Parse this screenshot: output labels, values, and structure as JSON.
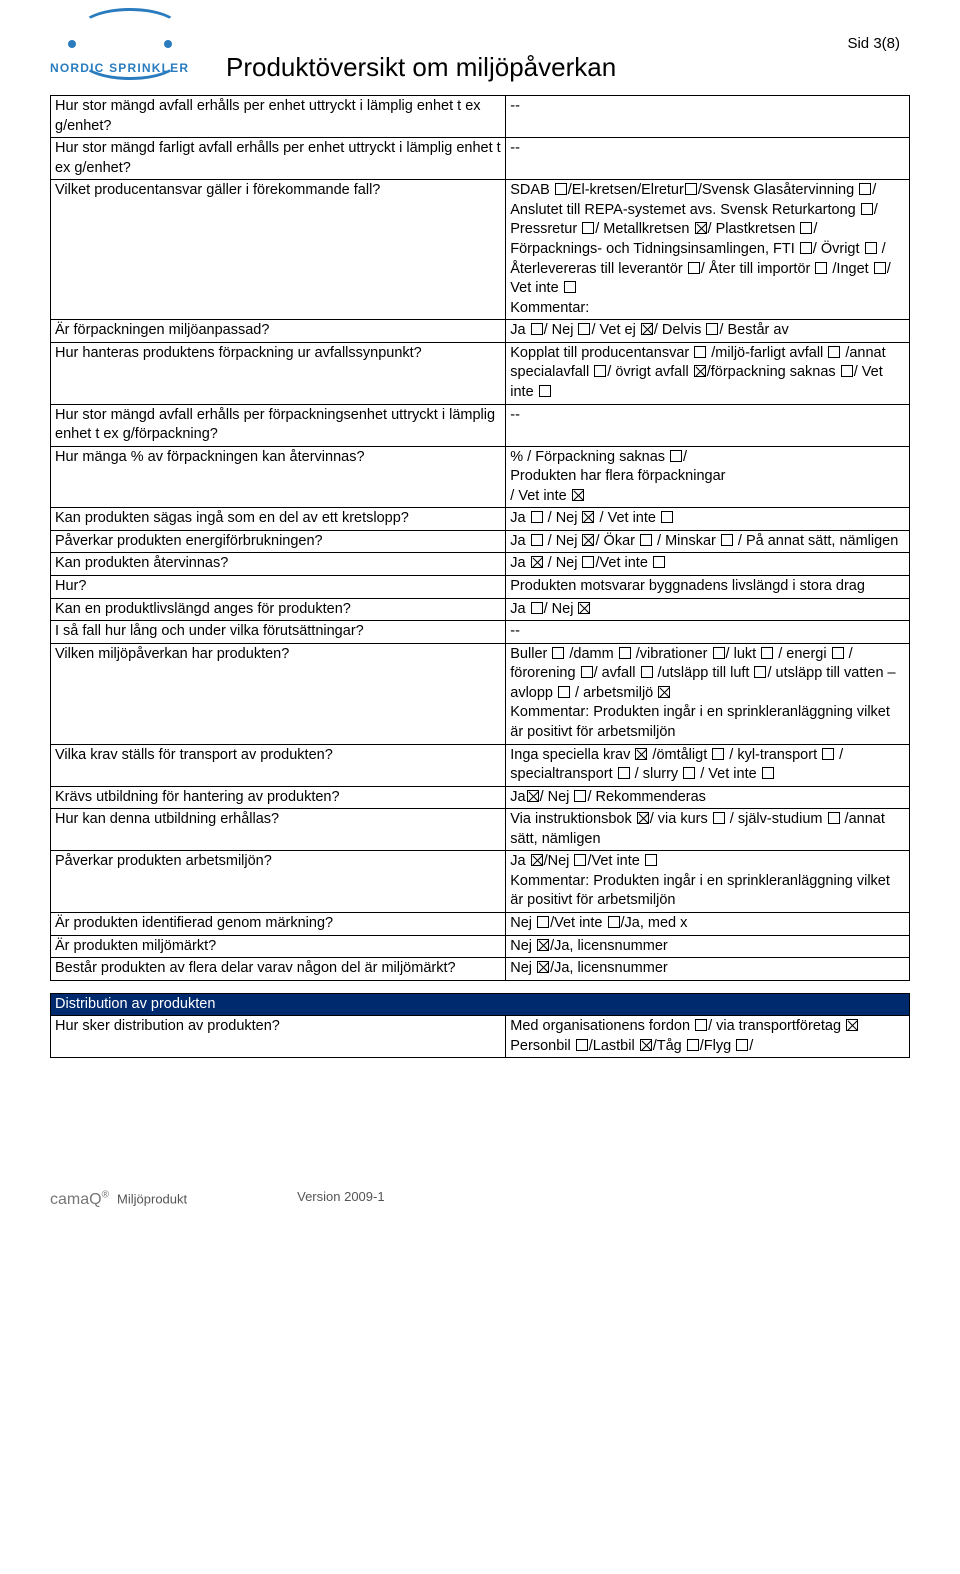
{
  "logo": {
    "text": "NORDIC SPRINKLER"
  },
  "page_number": "Sid 3(8)",
  "title": "Produktöversikt om miljöpåverkan",
  "rows": [
    {
      "q": "Hur stor mängd avfall erhålls per enhet uttryckt i lämplig enhet t ex g/enhet?",
      "a": [
        [
          "--"
        ]
      ]
    },
    {
      "q": "Hur stor mängd farligt avfall erhålls per enhet uttryckt i lämplig enhet t ex g/enhet?",
      "a": [
        [
          "--"
        ]
      ]
    },
    {
      "q": "Vilket producentansvar gäller i förekommande fall?",
      "a": [
        [
          "SDAB ",
          {
            "cb": 0
          },
          "/El-kretsen/Elretur",
          {
            "cb": 0
          },
          "/Svensk Glasåtervinning ",
          {
            "cb": 0
          },
          "/ Anslutet till REPA-systemet avs. Svensk Returkartong ",
          {
            "cb": 0
          },
          "/ Pressretur ",
          {
            "cb": 0
          },
          "/  Metallkretsen ",
          {
            "cb": 1
          },
          "/ Plastkretsen ",
          {
            "cb": 0
          },
          "/ Förpacknings- och Tidningsinsamlingen, FTI ",
          {
            "cb": 0
          },
          "/ Övrigt ",
          {
            "cb": 0
          },
          " / Återlevereras till leverantör ",
          {
            "cb": 0
          },
          "/ Åter till importör ",
          {
            "cb": 0
          },
          " /Inget ",
          {
            "cb": 0
          },
          "/"
        ],
        [
          "Vet inte ",
          {
            "cb": 0
          }
        ],
        [
          "Kommentar:"
        ]
      ]
    },
    {
      "q": "Är förpackningen miljöanpassad?",
      "a": [
        [
          "Ja ",
          {
            "cb": 0
          },
          "/ Nej ",
          {
            "cb": 0
          },
          "/ Vet ej ",
          {
            "cb": 1
          },
          "/ Delvis ",
          {
            "cb": 0
          },
          "/ Består av"
        ]
      ]
    },
    {
      "q": "Hur hanteras produktens förpackning ur avfallssynpunkt?",
      "a": [
        [
          "Kopplat till producentansvar ",
          {
            "cb": 0
          },
          " /miljö-farligt avfall ",
          {
            "cb": 0
          },
          " /annat specialavfall ",
          {
            "cb": 0
          },
          "/ övrigt avfall ",
          {
            "cb": 1
          },
          "/förpackning saknas ",
          {
            "cb": 0
          },
          "/ Vet inte ",
          {
            "cb": 0
          }
        ]
      ]
    },
    {
      "q": "Hur stor mängd avfall erhålls per förpackningsenhet uttryckt i lämplig enhet t ex g/förpackning?",
      "a": [
        [
          "--"
        ]
      ]
    },
    {
      "q": "Hur mänga % av förpackningen kan återvinnas?",
      "a": [
        [
          "                              % / Förpackning saknas ",
          {
            "cb": 0
          },
          "/"
        ],
        [
          "Produkten har flera förpackningar"
        ],
        [
          "           / Vet inte ",
          {
            "cb": 1
          }
        ]
      ]
    },
    {
      "q": "Kan produkten sägas ingå som en del av ett kretslopp?",
      "a": [
        [
          "Ja ",
          {
            "cb": 0
          },
          " / Nej ",
          {
            "cb": 1
          },
          " / Vet inte ",
          {
            "cb": 0
          }
        ]
      ]
    },
    {
      "q": "Påverkar produkten energiförbrukningen?",
      "a": [
        [
          "Ja ",
          {
            "cb": 0
          },
          " / Nej ",
          {
            "cb": 1
          },
          "/ Ökar ",
          {
            "cb": 0
          },
          " / Minskar ",
          {
            "cb": 0
          },
          " / På annat sätt, nämligen"
        ]
      ]
    },
    {
      "q": "Kan produkten återvinnas?",
      "a": [
        [
          "Ja ",
          {
            "cb": 1
          },
          " / Nej ",
          {
            "cb": 0
          },
          "/Vet inte ",
          {
            "cb": 0
          }
        ]
      ]
    },
    {
      "q": "Hur?",
      "a": [
        [
          "Produkten motsvarar byggnadens livslängd i stora drag"
        ]
      ]
    },
    {
      "q": "Kan en produktlivslängd  anges för produkten?",
      "a": [
        [
          "Ja ",
          {
            "cb": 0
          },
          "/ Nej ",
          {
            "cb": 1
          }
        ]
      ]
    },
    {
      "q": "I så fall hur lång och under vilka förutsättningar?",
      "a": [
        [
          "--"
        ]
      ]
    },
    {
      "q": "Vilken miljöpåverkan har produkten?",
      "a": [
        [
          "Buller ",
          {
            "cb": 0
          },
          " /damm ",
          {
            "cb": 0
          },
          " /vibrationer ",
          {
            "cb": 0
          },
          "/ lukt ",
          {
            "cb": 0
          },
          " / energi ",
          {
            "cb": 0
          },
          " / förorening ",
          {
            "cb": 0
          },
          "/ avfall ",
          {
            "cb": 0
          },
          " /utsläpp till luft ",
          {
            "cb": 0
          },
          "/ utsläpp till vatten – avlopp ",
          {
            "cb": 0
          },
          " / arbetsmiljö ",
          {
            "cb": 1
          }
        ],
        [
          "Kommentar: Produkten ingår i en sprinkleranläggning vilket är positivt för arbetsmiljön"
        ]
      ]
    },
    {
      "q": "Vilka krav ställs för transport av produkten?",
      "a": [
        [
          "Inga speciella krav ",
          {
            "cb": 1
          },
          " /ömtåligt ",
          {
            "cb": 0
          },
          " / kyl-transport ",
          {
            "cb": 0
          },
          " / specialtransport ",
          {
            "cb": 0
          },
          " / slurry ",
          {
            "cb": 0
          },
          " / Vet inte ",
          {
            "cb": 0
          }
        ]
      ]
    },
    {
      "q": "Krävs utbildning för hantering av produkten?",
      "a": [
        [
          "Ja",
          {
            "cb": 1
          },
          "/ Nej ",
          {
            "cb": 0
          },
          "/ Rekommenderas"
        ]
      ]
    },
    {
      "q": "Hur kan denna utbildning erhållas?",
      "a": [
        [
          "Via instruktionsbok ",
          {
            "cb": 1
          },
          "/ via kurs ",
          {
            "cb": 0
          },
          " / själv-studium ",
          {
            "cb": 0
          },
          " /annat sätt, nämligen"
        ],
        [
          " "
        ]
      ]
    },
    {
      "q": "Påverkar produkten arbetsmiljön?",
      "a": [
        [
          "Ja ",
          {
            "cb": 1
          },
          "/Nej ",
          {
            "cb": 0
          },
          "/Vet inte ",
          {
            "cb": 0
          }
        ],
        [
          "Kommentar: Produkten ingår i en sprinkleranläggning vilket är positivt för arbetsmiljön"
        ]
      ]
    },
    {
      "q": "Är produkten identifierad genom märkning?",
      "a": [
        [
          "Nej ",
          {
            "cb": 0
          },
          "/Vet inte ",
          {
            "cb": 0
          },
          "/Ja, med  x"
        ]
      ]
    },
    {
      "q": "Är produkten miljömärkt?",
      "a": [
        [
          "Nej ",
          {
            "cb": 1
          },
          "/Ja, licensnummer"
        ]
      ]
    },
    {
      "q": "Består produkten av flera delar varav någon del är miljömärkt?",
      "a": [
        [
          "Nej ",
          {
            "cb": 1
          },
          "/Ja, licensnummer"
        ]
      ]
    }
  ],
  "section2_header": "Distribution av produkten",
  "rows2": [
    {
      "q": "Hur sker distribution av produkten?",
      "a": [
        [
          "Med organisationens fordon ",
          {
            "cb": 0
          },
          "/ via transportföretag ",
          {
            "cb": 1
          }
        ],
        [
          "Personbil ",
          {
            "cb": 0
          },
          "/Lastbil ",
          {
            "cb": 1
          },
          "/Tåg ",
          {
            "cb": 0
          },
          "/Flyg ",
          {
            "cb": 0
          },
          "/"
        ]
      ]
    }
  ],
  "footer": {
    "brand": "camaQ",
    "reg": "®",
    "product": "Miljöprodukt",
    "version": "Version 2009-1"
  }
}
